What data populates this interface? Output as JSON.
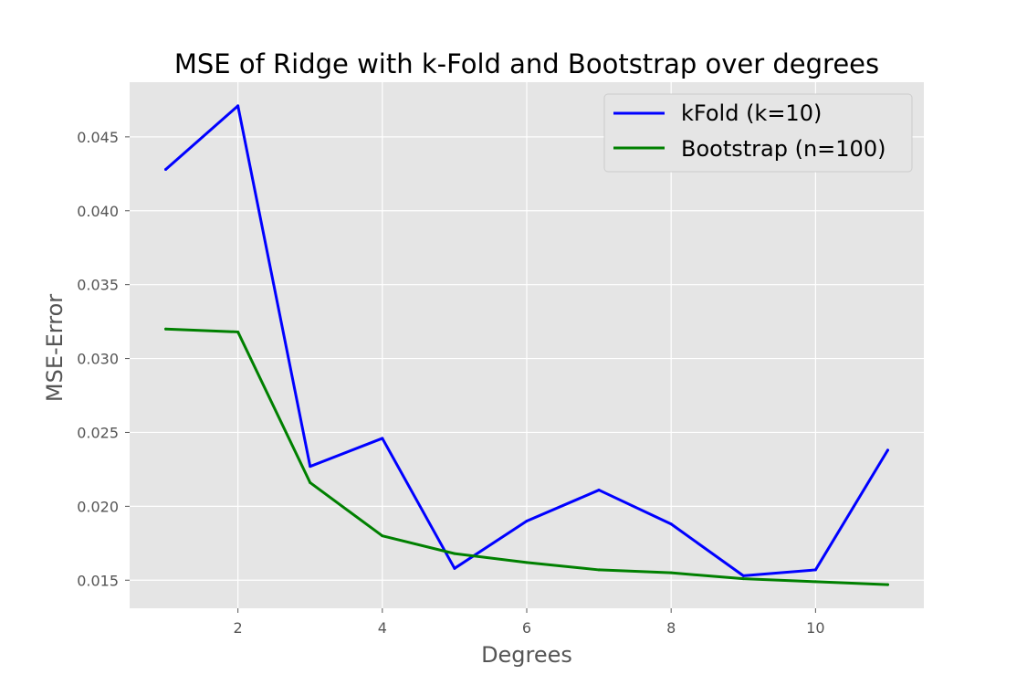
{
  "chart_data": {
    "type": "line",
    "title": "MSE of Ridge with k-Fold and Bootstrap over degrees",
    "xlabel": "Degrees",
    "ylabel": "MSE-Error",
    "x": [
      1,
      2,
      3,
      4,
      5,
      6,
      7,
      8,
      9,
      10,
      11
    ],
    "xlim": [
      0.5,
      11.5
    ],
    "ylim": [
      0.0131,
      0.0487
    ],
    "xticks": [
      2,
      4,
      6,
      8,
      10
    ],
    "xtick_labels": [
      "2",
      "4",
      "6",
      "8",
      "10"
    ],
    "yticks": [
      0.015,
      0.02,
      0.025,
      0.03,
      0.035,
      0.04,
      0.045
    ],
    "ytick_labels": [
      "0.015",
      "0.020",
      "0.025",
      "0.030",
      "0.035",
      "0.040",
      "0.045"
    ],
    "grid": true,
    "legend_position": "top-right",
    "series": [
      {
        "name": "kFold (k=10)",
        "color": "#0000ff",
        "values": [
          0.0428,
          0.0471,
          0.0227,
          0.0246,
          0.0158,
          0.019,
          0.0211,
          0.0188,
          0.0153,
          0.0157,
          0.0238
        ]
      },
      {
        "name": "Bootstrap (n=100)",
        "color": "#008000",
        "values": [
          0.032,
          0.0318,
          0.0216,
          0.018,
          0.0168,
          0.0162,
          0.0157,
          0.0155,
          0.0151,
          0.0149,
          0.0147
        ]
      }
    ],
    "colors": {
      "background": "#ffffff",
      "plot_background": "#e5e5e5",
      "grid": "#ffffff",
      "tick_text": "#555555"
    }
  }
}
